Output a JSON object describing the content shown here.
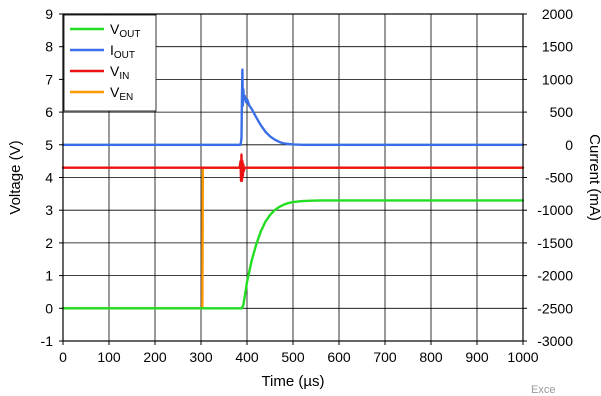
{
  "chart_data": {
    "type": "line",
    "title": "",
    "xlabel": "Time (µs)",
    "ylabel": "Voltage (V)",
    "ylabel_right": "Current (mA)",
    "xlim": [
      0,
      1000
    ],
    "ylim": [
      -1,
      9
    ],
    "ylim_right": [
      -3000,
      2000
    ],
    "x_ticks": [
      0,
      100,
      200,
      300,
      400,
      500,
      600,
      700,
      800,
      900,
      1000
    ],
    "y_ticks": [
      -1,
      0,
      1,
      2,
      3,
      4,
      5,
      6,
      7,
      8,
      9
    ],
    "y_ticks_right": [
      -3000,
      -2500,
      -2000,
      -1500,
      -1000,
      -500,
      0,
      500,
      1000,
      1500,
      2000
    ],
    "grid": true,
    "legend_position": "top-left",
    "series": [
      {
        "name": "V",
        "subscript": "OUT",
        "color": "#22dd22",
        "axis": "left",
        "x": [
          0,
          380,
          389,
          392,
          395,
          400,
          410,
          420,
          430,
          440,
          450,
          460,
          470,
          480,
          490,
          500,
          520,
          540,
          560,
          600,
          700,
          800,
          900,
          1000
        ],
        "y": [
          0,
          0,
          0,
          0.1,
          0.35,
          0.8,
          1.45,
          1.95,
          2.35,
          2.65,
          2.85,
          3.0,
          3.1,
          3.17,
          3.22,
          3.25,
          3.28,
          3.29,
          3.3,
          3.3,
          3.3,
          3.3,
          3.3,
          3.3
        ]
      },
      {
        "name": "I",
        "subscript": "OUT",
        "color": "#3a6fe8",
        "axis": "right",
        "x": [
          0,
          386,
          388,
          389,
          390,
          391,
          392,
          393,
          395,
          398,
          400,
          405,
          410,
          420,
          430,
          440,
          450,
          460,
          470,
          480,
          500,
          520,
          1000
        ],
        "y": [
          0,
          0,
          100,
          700,
          1150,
          600,
          850,
          700,
          750,
          650,
          700,
          600,
          550,
          420,
          300,
          200,
          130,
          80,
          45,
          20,
          5,
          0,
          0
        ]
      },
      {
        "name": "V",
        "subscript": "IN",
        "color": "#ee1111",
        "axis": "left",
        "x": [
          0,
          300,
          384,
          386,
          387,
          388,
          389,
          390,
          391,
          392,
          393,
          395,
          1000
        ],
        "y": [
          4.3,
          4.3,
          4.3,
          4.5,
          3.9,
          4.7,
          3.9,
          4.5,
          4.05,
          4.4,
          4.2,
          4.3,
          4.3
        ]
      },
      {
        "name": "V",
        "subscript": "EN",
        "color": "#ff9900",
        "axis": "left",
        "x": [
          0,
          300,
          303,
          304,
          1000
        ],
        "y": [
          0,
          0,
          0,
          4.3,
          4.3
        ]
      }
    ]
  },
  "watermark": "Exce"
}
